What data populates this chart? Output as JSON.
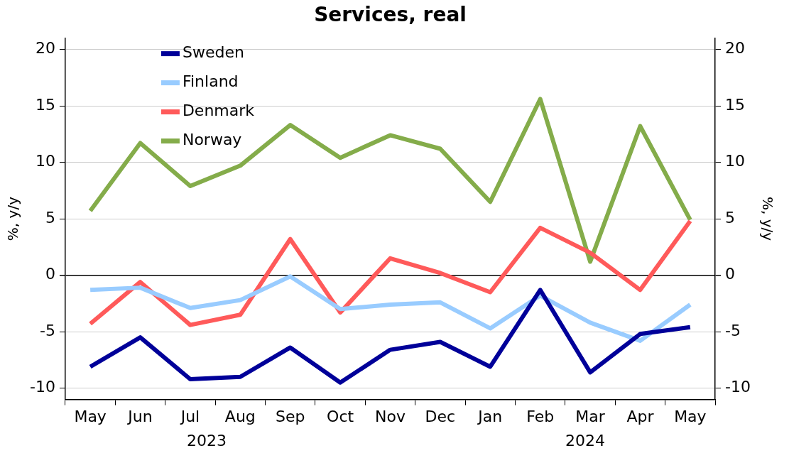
{
  "chart_data": {
    "type": "line",
    "title": "Services, real",
    "ylabel": "%, y/y",
    "y2label": "%, y/y",
    "categories": [
      "May",
      "Jun",
      "Jul",
      "Aug",
      "Sep",
      "Oct",
      "Nov",
      "Dec",
      "Jan",
      "Feb",
      "Mar",
      "Apr",
      "May"
    ],
    "series": [
      {
        "name": "Sweden",
        "color": "#000099",
        "values": [
          -8.1,
          -5.5,
          -9.2,
          -9.0,
          -6.4,
          -9.5,
          -6.6,
          -5.9,
          -8.1,
          -1.3,
          -8.6,
          -5.2,
          -4.6
        ]
      },
      {
        "name": "Finland",
        "color": "#99ccff",
        "values": [
          -1.3,
          -1.1,
          -2.9,
          -2.2,
          -0.1,
          -3.0,
          -2.6,
          -2.4,
          -4.7,
          -1.8,
          -4.2,
          -5.8,
          -2.6
        ]
      },
      {
        "name": "Denmark",
        "color": "#ff5a5a",
        "values": [
          -4.3,
          -0.6,
          -4.4,
          -3.5,
          3.2,
          -3.3,
          1.5,
          0.2,
          -1.5,
          4.2,
          2.0,
          -1.3,
          4.8
        ]
      },
      {
        "name": "Norway",
        "color": "#84ac4a",
        "values": [
          5.7,
          11.7,
          7.9,
          9.7,
          13.3,
          10.4,
          12.4,
          11.2,
          6.5,
          15.6,
          1.2,
          13.2,
          4.9
        ]
      }
    ],
    "ylim": [
      -11,
      21
    ],
    "yticks": [
      -10,
      -5,
      0,
      5,
      10,
      15,
      20
    ],
    "y2lim": [
      -11,
      21
    ],
    "y2ticks": [
      -10,
      -5,
      0,
      5,
      10,
      15,
      20
    ],
    "annotations": [
      "2023",
      "2024"
    ],
    "grid": "y",
    "legend": "top left",
    "marker": "none",
    "line_style": "solid"
  }
}
